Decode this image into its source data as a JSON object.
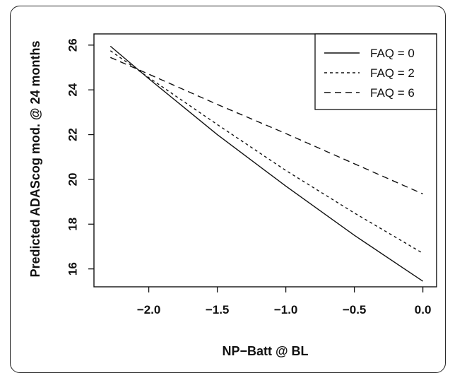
{
  "chart_data": {
    "type": "line",
    "title": "",
    "xlabel": "NP−Batt @ BL",
    "ylabel": "Predicted ADAScog mod. @ 24 months",
    "xlim": [
      -2.4,
      0.1
    ],
    "ylim": [
      15.2,
      26.5
    ],
    "xticks": [
      -2.0,
      -1.5,
      -1.0,
      -0.5,
      0.0
    ],
    "xtick_labels": [
      "−2.0",
      "−1.5",
      "−1.0",
      "−0.5",
      "0.0"
    ],
    "yticks": [
      16,
      18,
      20,
      22,
      24,
      26
    ],
    "ytick_labels": [
      "16",
      "18",
      "20",
      "22",
      "24",
      "26"
    ],
    "grid": false,
    "legend_position": "top-right",
    "series": [
      {
        "name": "FAQ = 0",
        "style": "solid",
        "x": [
          -2.28,
          -2.0,
          -1.5,
          -1.0,
          -0.5,
          0.0
        ],
        "y": [
          25.95,
          24.5,
          22.0,
          19.7,
          17.5,
          15.45
        ]
      },
      {
        "name": "FAQ = 2",
        "style": "dotted",
        "x": [
          -2.28,
          -2.0,
          -1.5,
          -1.0,
          -0.5,
          0.0
        ],
        "y": [
          25.75,
          24.55,
          22.45,
          20.4,
          18.5,
          16.7
        ]
      },
      {
        "name": "FAQ = 6",
        "style": "dashed",
        "x": [
          -2.28,
          -2.0,
          -1.5,
          -1.0,
          -0.5,
          0.0
        ],
        "y": [
          25.45,
          24.7,
          23.35,
          22.05,
          20.7,
          19.35
        ]
      }
    ]
  }
}
